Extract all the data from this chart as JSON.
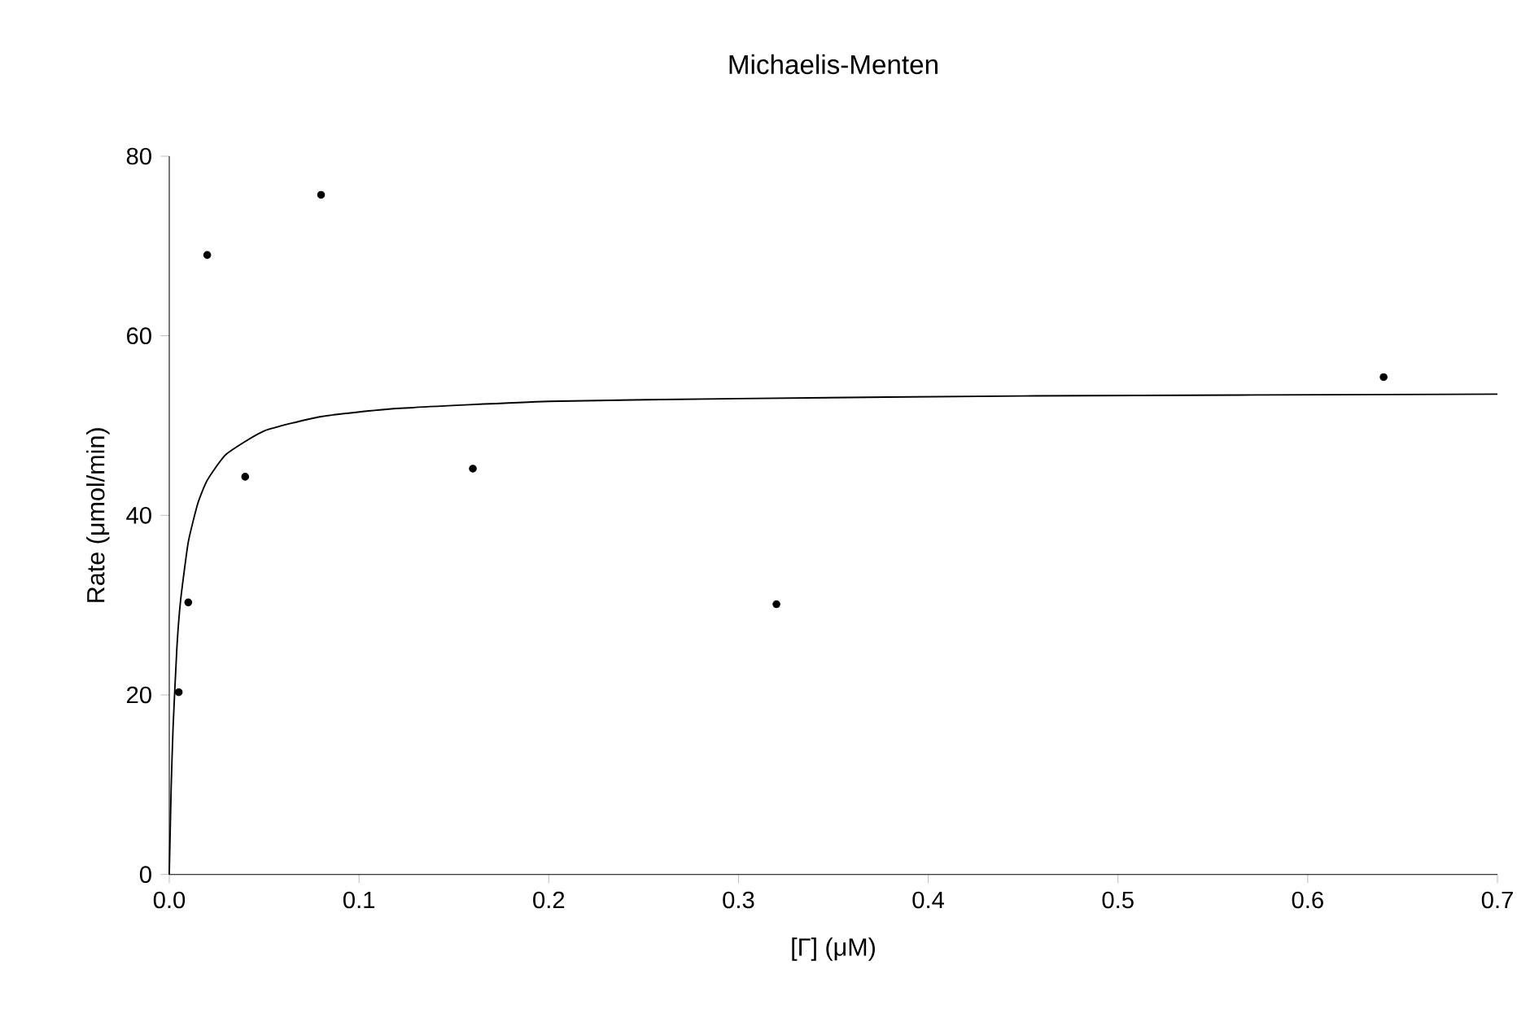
{
  "chart_data": {
    "type": "scatter",
    "title": "Michaelis-Menten",
    "xlabel": "[Γ] (μM)",
    "ylabel": "Rate (μmol/min)",
    "xlim": [
      0,
      0.7
    ],
    "ylim": [
      0,
      80
    ],
    "xticks": [
      {
        "value": 0,
        "label": "0.0"
      },
      {
        "value": 0.1,
        "label": "0.1"
      },
      {
        "value": 0.2,
        "label": "0.2"
      },
      {
        "value": 0.3,
        "label": "0.3"
      },
      {
        "value": 0.4,
        "label": "0.4"
      },
      {
        "value": 0.5,
        "label": "0.5"
      },
      {
        "value": 0.6,
        "label": "0.6"
      },
      {
        "value": 0.7,
        "label": "0.7"
      }
    ],
    "yticks": [
      0,
      20,
      40,
      60,
      80
    ],
    "series": [
      {
        "marker": "circle",
        "color": "#000000",
        "x": [
          0.005,
          0.01,
          0.02,
          0.04,
          0.08,
          0.16,
          0.32,
          0.64
        ],
        "values": [
          20.3,
          30.3,
          69,
          44.3,
          75.7,
          45.2,
          30.1,
          55.4
        ]
      },
      {
        "type": "line",
        "marker": "none",
        "line_style": "solid",
        "color": "#000000",
        "x": [
          0,
          0.001,
          0.002,
          0.004,
          0.006,
          0.01,
          0.015,
          0.02,
          0.03,
          0.05,
          0.08,
          0.12,
          0.2,
          0.3,
          0.45,
          0.7
        ],
        "values": [
          0,
          9.7,
          16.4,
          25.2,
          30.6,
          37,
          41.3,
          43.9,
          46.8,
          49.4,
          51,
          51.9,
          52.7,
          53,
          53.3,
          53.5
        ]
      }
    ]
  }
}
